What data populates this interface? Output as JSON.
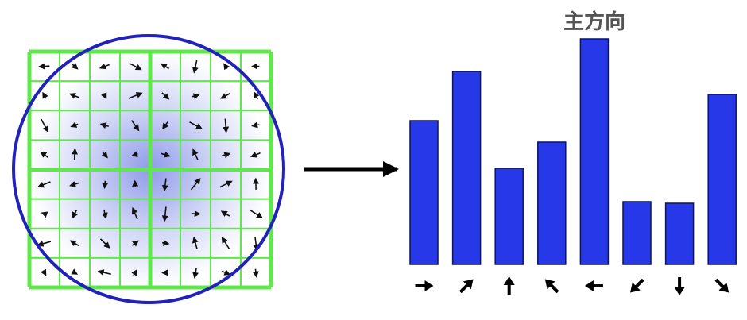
{
  "chart_data": {
    "type": "bar",
    "title": "主方向",
    "categories": [
      null,
      null,
      null,
      null,
      null,
      null,
      null,
      null
    ],
    "values": [
      181,
      243,
      121,
      154,
      284,
      79,
      77,
      214
    ],
    "ylim": [
      0,
      300
    ],
    "color": "#2638e8"
  }
}
